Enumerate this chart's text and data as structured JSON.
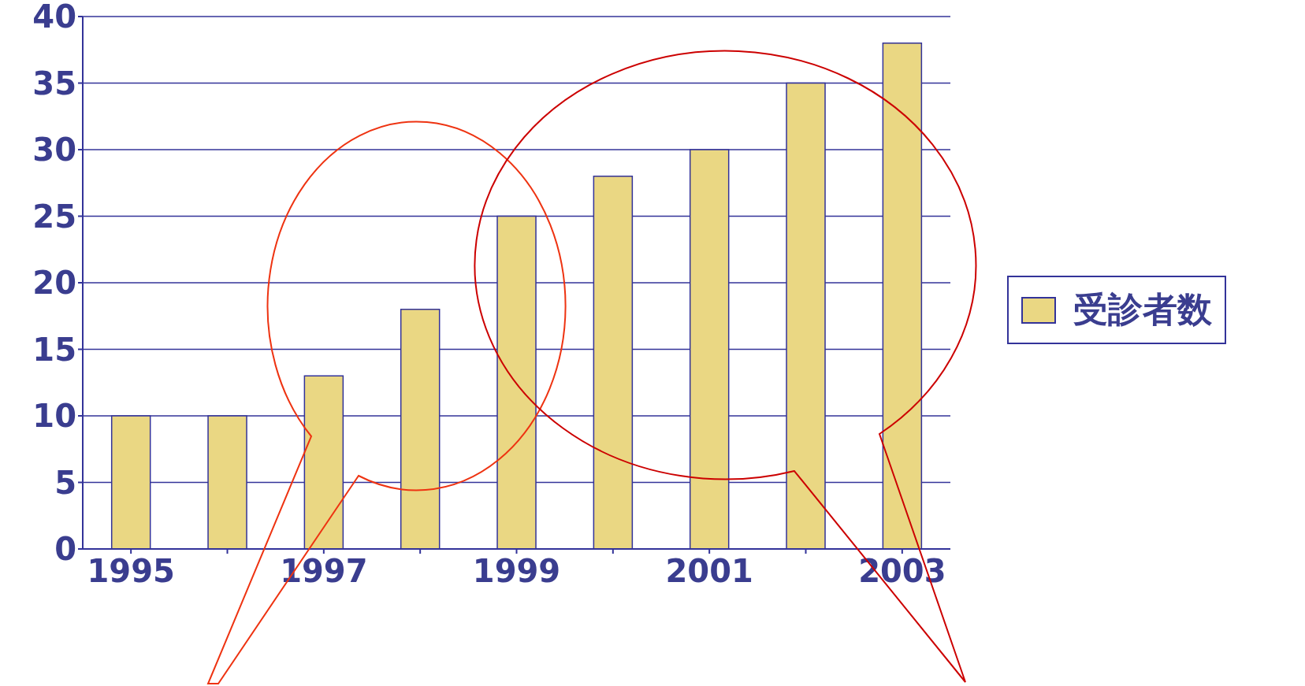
{
  "chart_data": {
    "type": "bar",
    "categories": [
      "1995",
      null,
      "1997",
      null,
      "1999",
      null,
      "2001",
      null,
      "2003"
    ],
    "series": [
      {
        "name": "受診者数",
        "color": "#ead783",
        "values": [
          10,
          10,
          13,
          18,
          25,
          28,
          30,
          35,
          38
        ]
      }
    ],
    "ylim": [
      0,
      40
    ],
    "yticks": [
      0,
      5,
      10,
      15,
      20,
      25,
      30,
      35,
      40
    ],
    "grid": "y",
    "legend": "right"
  }
}
